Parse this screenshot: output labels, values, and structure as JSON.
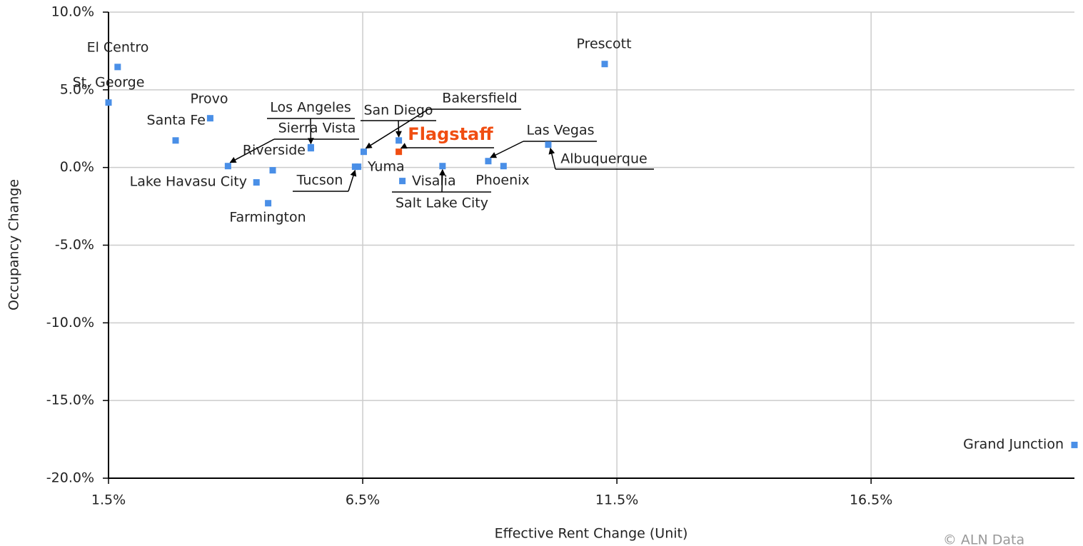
{
  "chart_data": {
    "type": "scatter",
    "x_label": "Effective Rent Change (Unit)",
    "y_label": "Occupancy Change",
    "credit": "© ALN Data",
    "xlim": [
      1.5,
      20.5
    ],
    "ylim": [
      -20,
      10
    ],
    "xticks": [
      {
        "value": 1.5,
        "label": "1.5%"
      },
      {
        "value": 6.5,
        "label": "6.5%"
      },
      {
        "value": 11.5,
        "label": "11.5%"
      },
      {
        "value": 16.5,
        "label": "16.5%"
      }
    ],
    "yticks": [
      {
        "value": 10,
        "label": "10.0%"
      },
      {
        "value": 5,
        "label": "5.0%"
      },
      {
        "value": 0,
        "label": "0.0%"
      },
      {
        "value": -5,
        "label": "-5.0%"
      },
      {
        "value": -10,
        "label": "-10.0%"
      },
      {
        "value": -15,
        "label": "-15.0%"
      },
      {
        "value": -20,
        "label": "-20.0%"
      }
    ],
    "grid": true,
    "points": [
      {
        "label": "El Centro",
        "x": 1.68,
        "y": 6.47,
        "color": "#4a8fe7"
      },
      {
        "label": "St. George",
        "x": 1.5,
        "y": 4.18,
        "color": "#4a8fe7"
      },
      {
        "label": "Provo",
        "x": 3.5,
        "y": 3.17,
        "color": "#4a8fe7"
      },
      {
        "label": "Santa Fe",
        "x": 2.82,
        "y": 1.74,
        "color": "#4a8fe7"
      },
      {
        "label": "Sierra Vista",
        "x": 3.85,
        "y": 0.09,
        "color": "#4a8fe7"
      },
      {
        "label": "Riverside",
        "x": 5.48,
        "y": 1.24,
        "color": "#4a8fe7"
      },
      {
        "label": "Los Angeles",
        "x": 5.48,
        "y": 1.3,
        "color": "#4a8fe7"
      },
      {
        "label": null,
        "x": 4.73,
        "y": -0.18,
        "color": "#4a8fe7"
      },
      {
        "label": "Lake Havasu City",
        "x": 4.41,
        "y": -0.96,
        "color": "#4a8fe7"
      },
      {
        "label": "Farmington",
        "x": 4.64,
        "y": -2.3,
        "color": "#4a8fe7"
      },
      {
        "label": "Tucson",
        "x": 6.35,
        "y": 0.05,
        "color": "#4a8fe7"
      },
      {
        "label": "Yuma",
        "x": 6.41,
        "y": 0.05,
        "color": "#4a8fe7"
      },
      {
        "label": "San Diego",
        "x": 7.21,
        "y": 1.74,
        "color": "#4a8fe7"
      },
      {
        "label": "Flagstaff",
        "x": 7.21,
        "y": 1.01,
        "color": "#f04e12"
      },
      {
        "label": "Visalia",
        "x": 7.28,
        "y": -0.87,
        "color": "#4a8fe7"
      },
      {
        "label": "Salt Lake City",
        "x": 8.07,
        "y": 0.09,
        "color": "#4a8fe7"
      },
      {
        "label": "Las Vegas",
        "x": 8.97,
        "y": 0.41,
        "color": "#4a8fe7"
      },
      {
        "label": "Albuquerque",
        "x": 10.15,
        "y": 1.47,
        "color": "#4a8fe7"
      },
      {
        "label": "Phoenix",
        "x": 9.27,
        "y": 0.09,
        "color": "#4a8fe7"
      },
      {
        "label": "Prescott",
        "x": 11.26,
        "y": 6.66,
        "color": "#4a8fe7"
      },
      {
        "label": "Grand Junction",
        "x": 20.5,
        "y": -17.86,
        "color": "#4a8fe7"
      },
      {
        "label": "Bakersfield",
        "x": 6.52,
        "y": 1.01,
        "color": "#4a8fe7"
      }
    ]
  }
}
